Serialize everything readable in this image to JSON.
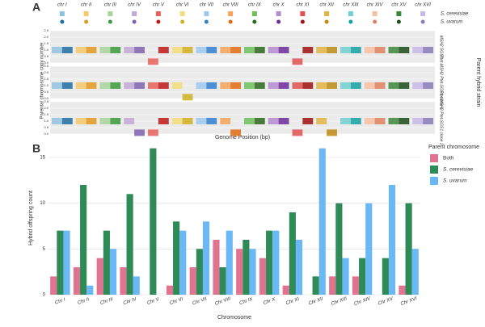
{
  "chart_data": [
    {
      "type": "strip",
      "panel_label": "A",
      "xlabel": "Genome Position (bp)",
      "ylabel": "Parental chromosome copy number",
      "strain_title": "Parent hybrid strain",
      "categories": [
        "chr I",
        "chr II",
        "chr III",
        "chr IV",
        "chr V",
        "chr VI",
        "chr VII",
        "chr VIII",
        "chr IX",
        "chr X",
        "chr XI",
        "chr XII",
        "chr XIII",
        "chr XIV",
        "chr XV",
        "chr XVI"
      ],
      "series": [
        {
          "name": "S. cerevisiae",
          "colors": [
            "#8fc4e0",
            "#f7c96a",
            "#a8d59a",
            "#c2a8d6",
            "#e8605a",
            "#f3dd7a",
            "#9cc8f0",
            "#f6a45a",
            "#6fbf5a",
            "#b48ad0",
            "#e05050",
            "#e3b440",
            "#70d0d0",
            "#f7c0a0",
            "#3a8a3a",
            "#c8b8e8"
          ]
        },
        {
          "name": "S. uvarum",
          "colors": [
            "#1f6f9f",
            "#e09a20",
            "#3a9a3a",
            "#8060b0",
            "#c01818",
            "#d0b020",
            "#3080d0",
            "#e06a10",
            "#2a6a1a",
            "#6a2a9a",
            "#a01010",
            "#c08a10",
            "#10a0a0",
            "#e08060",
            "#1a4a1a",
            "#8a7ab8"
          ]
        }
      ],
      "strains": [
        {
          "name": "MSH2 SGS1",
          "series": [
            {
              "values": [
                1,
                1,
                1,
                1,
                0.1,
                1,
                1,
                1,
                1,
                1,
                0.1,
                1,
                1,
                1,
                1,
                1
              ]
            },
            {
              "values": [
                1,
                1,
                1,
                1,
                1,
                1,
                1,
                1,
                1,
                1,
                1,
                1,
                1,
                1,
                1,
                1
              ]
            }
          ]
        },
        {
          "name": "Ptet-MSH2 Ptet-SGS1 clone 1",
          "series": [
            {
              "values": [
                1,
                1,
                1,
                1,
                1,
                1,
                1,
                1,
                1,
                1,
                1,
                1,
                1,
                1,
                1,
                1
              ]
            },
            {
              "values": [
                1,
                1,
                1,
                1,
                1,
                0.1,
                1,
                1,
                1,
                1,
                1,
                1,
                1,
                1,
                1,
                1
              ]
            }
          ]
        },
        {
          "name": "Ptet-MSH2 Ptet-SGS1 clone 2",
          "series": [
            {
              "values": [
                1,
                1,
                1,
                1,
                0.1,
                1,
                1,
                1,
                1,
                1,
                0.1,
                1,
                1,
                1,
                1,
                1
              ]
            },
            {
              "values": [
                1,
                1,
                1,
                0.1,
                1,
                1,
                1,
                0.1,
                1,
                1,
                1,
                0.1,
                1,
                1,
                1,
                1
              ]
            }
          ]
        }
      ],
      "ylim": [
        0,
        2.5
      ],
      "yticks": [
        {
          "value": 0,
          "label": "0.0"
        },
        {
          "value": 0.5,
          "label": "0.5"
        },
        {
          "value": 1,
          "label": "1.0"
        },
        {
          "value": 1.5,
          "label": "1.5"
        },
        {
          "value": 2,
          "label": "2.0"
        },
        {
          "value": 2.5,
          "label": "2.5"
        }
      ]
    },
    {
      "type": "bar",
      "panel_label": "B",
      "xlabel": "Chromosome",
      "ylabel": "Hybrid offspring count",
      "legend_title": "Parent chromosome",
      "categories": [
        "Chr I",
        "Chr II",
        "Chr III",
        "Chr IV",
        "Chr V",
        "Chr VI",
        "Chr VII",
        "Chr VIII",
        "Chr IX",
        "Chr X",
        "Chr XI",
        "Chr XII",
        "Chr XIII",
        "Chr XIV",
        "Chr XV",
        "Chr XVI"
      ],
      "series": [
        {
          "name": "Both",
          "color": "#e0738f",
          "values": [
            2,
            3,
            4,
            3,
            0,
            1,
            3,
            6,
            5,
            4,
            1,
            0,
            2,
            2,
            0,
            1
          ]
        },
        {
          "name": "S. cerevisiae",
          "color": "#2e8b57",
          "values": [
            7,
            12,
            7,
            11,
            16,
            8,
            5,
            3,
            6,
            7,
            9,
            2,
            10,
            4,
            4,
            10
          ]
        },
        {
          "name": "S. uvarum",
          "color": "#6ab8f5",
          "values": [
            7,
            1,
            5,
            2,
            0,
            7,
            8,
            7,
            5,
            7,
            6,
            16,
            4,
            10,
            12,
            5
          ]
        }
      ],
      "ylim": [
        0,
        16.5
      ],
      "yticks": [
        0,
        5,
        10,
        15
      ],
      "grid": true,
      "legend": "right"
    }
  ]
}
